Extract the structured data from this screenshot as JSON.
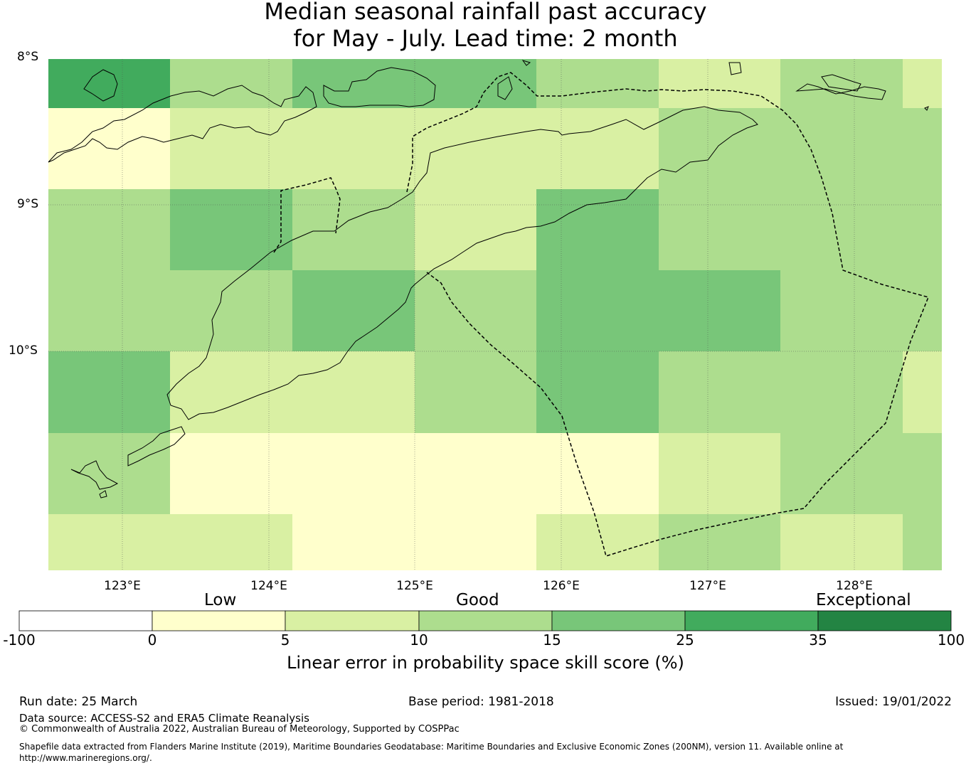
{
  "title": {
    "line1": "Median seasonal rainfall past accuracy",
    "line2": "for May - July. Lead time: 2 month"
  },
  "map": {
    "lat_labels": [
      "8°S",
      "9°S",
      "10°S"
    ],
    "lon_labels": [
      "123°E",
      "124°E",
      "125°E",
      "126°E",
      "127°E",
      "128°E"
    ],
    "grid_rows": [
      [
        30,
        10,
        20,
        20,
        10,
        5,
        10,
        5
      ],
      [
        0,
        5,
        5,
        5,
        5,
        10,
        10,
        10
      ],
      [
        10,
        20,
        10,
        5,
        20,
        10,
        10,
        10
      ],
      [
        10,
        10,
        20,
        10,
        20,
        20,
        10,
        10
      ],
      [
        20,
        5,
        5,
        10,
        20,
        10,
        10,
        5
      ],
      [
        10,
        0,
        0,
        0,
        0,
        5,
        10,
        10
      ],
      [
        5,
        5,
        0,
        0,
        5,
        10,
        5,
        10
      ]
    ]
  },
  "colorbar": {
    "categories": [
      "Low",
      "Good",
      "Exceptional"
    ],
    "ticks": [
      "-100",
      "0",
      "5",
      "10",
      "15",
      "25",
      "35",
      "100"
    ],
    "colors": [
      "#ffffff",
      "#ffffcc",
      "#d9f0a3",
      "#addd8e",
      "#78c679",
      "#41ab5d",
      "#238443"
    ],
    "title": "Linear error in probability space skill score (%)"
  },
  "footer": {
    "run_date": "Run date: 25 March",
    "base_period": "Base period: 1981-2018",
    "issued": "Issued: 19/01/2022",
    "data_source": "Data source: ACCESS-S2 and ERA5 Climate Reanalysis",
    "copyright": "© Commonwealth of Australia 2022, Australian Bureau of Meteorology, Supported by COSPPac",
    "shapefile": "Shapefile data extracted from Flanders Marine Institute (2019), Maritime Boundaries Geodatabase: Maritime Boundaries and Exclusive Economic Zones (200NM), version 11. Available online at",
    "url": "http://www.marineregions.org/."
  }
}
